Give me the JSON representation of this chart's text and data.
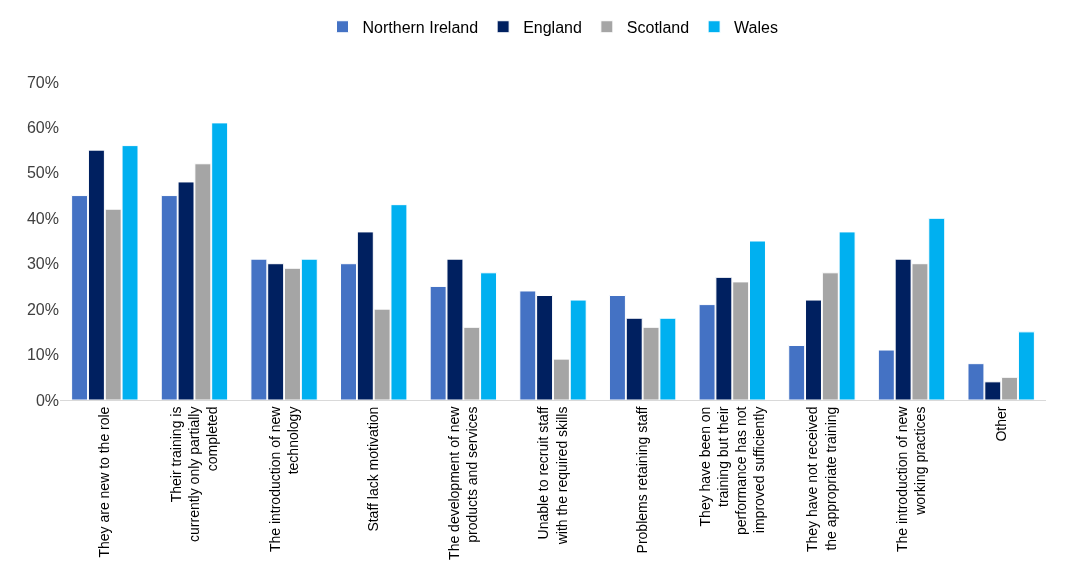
{
  "chart_data": {
    "type": "bar",
    "categories": [
      "They are new to the role",
      "Their training is currently only partially completed",
      "The introduction of new technology",
      "Staff lack motivation",
      "The development of new products and services",
      "Unable to recruit staff with the required skills",
      "Problems retaining staff",
      "They have been on training but their performance has not improved sufficiently",
      "They have not received the appropriate training",
      "The introduction of new working practices",
      "Other"
    ],
    "series": [
      {
        "name": "Northern Ireland",
        "color": "#4472c4",
        "values": [
          45,
          45,
          31,
          30,
          25,
          24,
          23,
          21,
          12,
          11,
          8
        ]
      },
      {
        "name": "England",
        "color": "#002060",
        "values": [
          55,
          48,
          30,
          37,
          31,
          23,
          18,
          27,
          22,
          31,
          4
        ]
      },
      {
        "name": "Scotland",
        "color": "#a5a5a5",
        "values": [
          42,
          52,
          29,
          20,
          16,
          9,
          16,
          26,
          28,
          30,
          5
        ]
      },
      {
        "name": "Wales",
        "color": "#00b0f0",
        "values": [
          56,
          61,
          31,
          43,
          28,
          22,
          18,
          35,
          37,
          40,
          15
        ]
      }
    ],
    "ylim": [
      0,
      70
    ],
    "yticks": [
      {
        "value": 0,
        "label": "0%"
      },
      {
        "value": 10,
        "label": "10%"
      },
      {
        "value": 20,
        "label": "20%"
      },
      {
        "value": 30,
        "label": "30%"
      },
      {
        "value": 40,
        "label": "40%"
      },
      {
        "value": 50,
        "label": "50%"
      },
      {
        "value": 60,
        "label": "60%"
      },
      {
        "value": 70,
        "label": "70%"
      }
    ],
    "grid": false,
    "legend": "top"
  }
}
